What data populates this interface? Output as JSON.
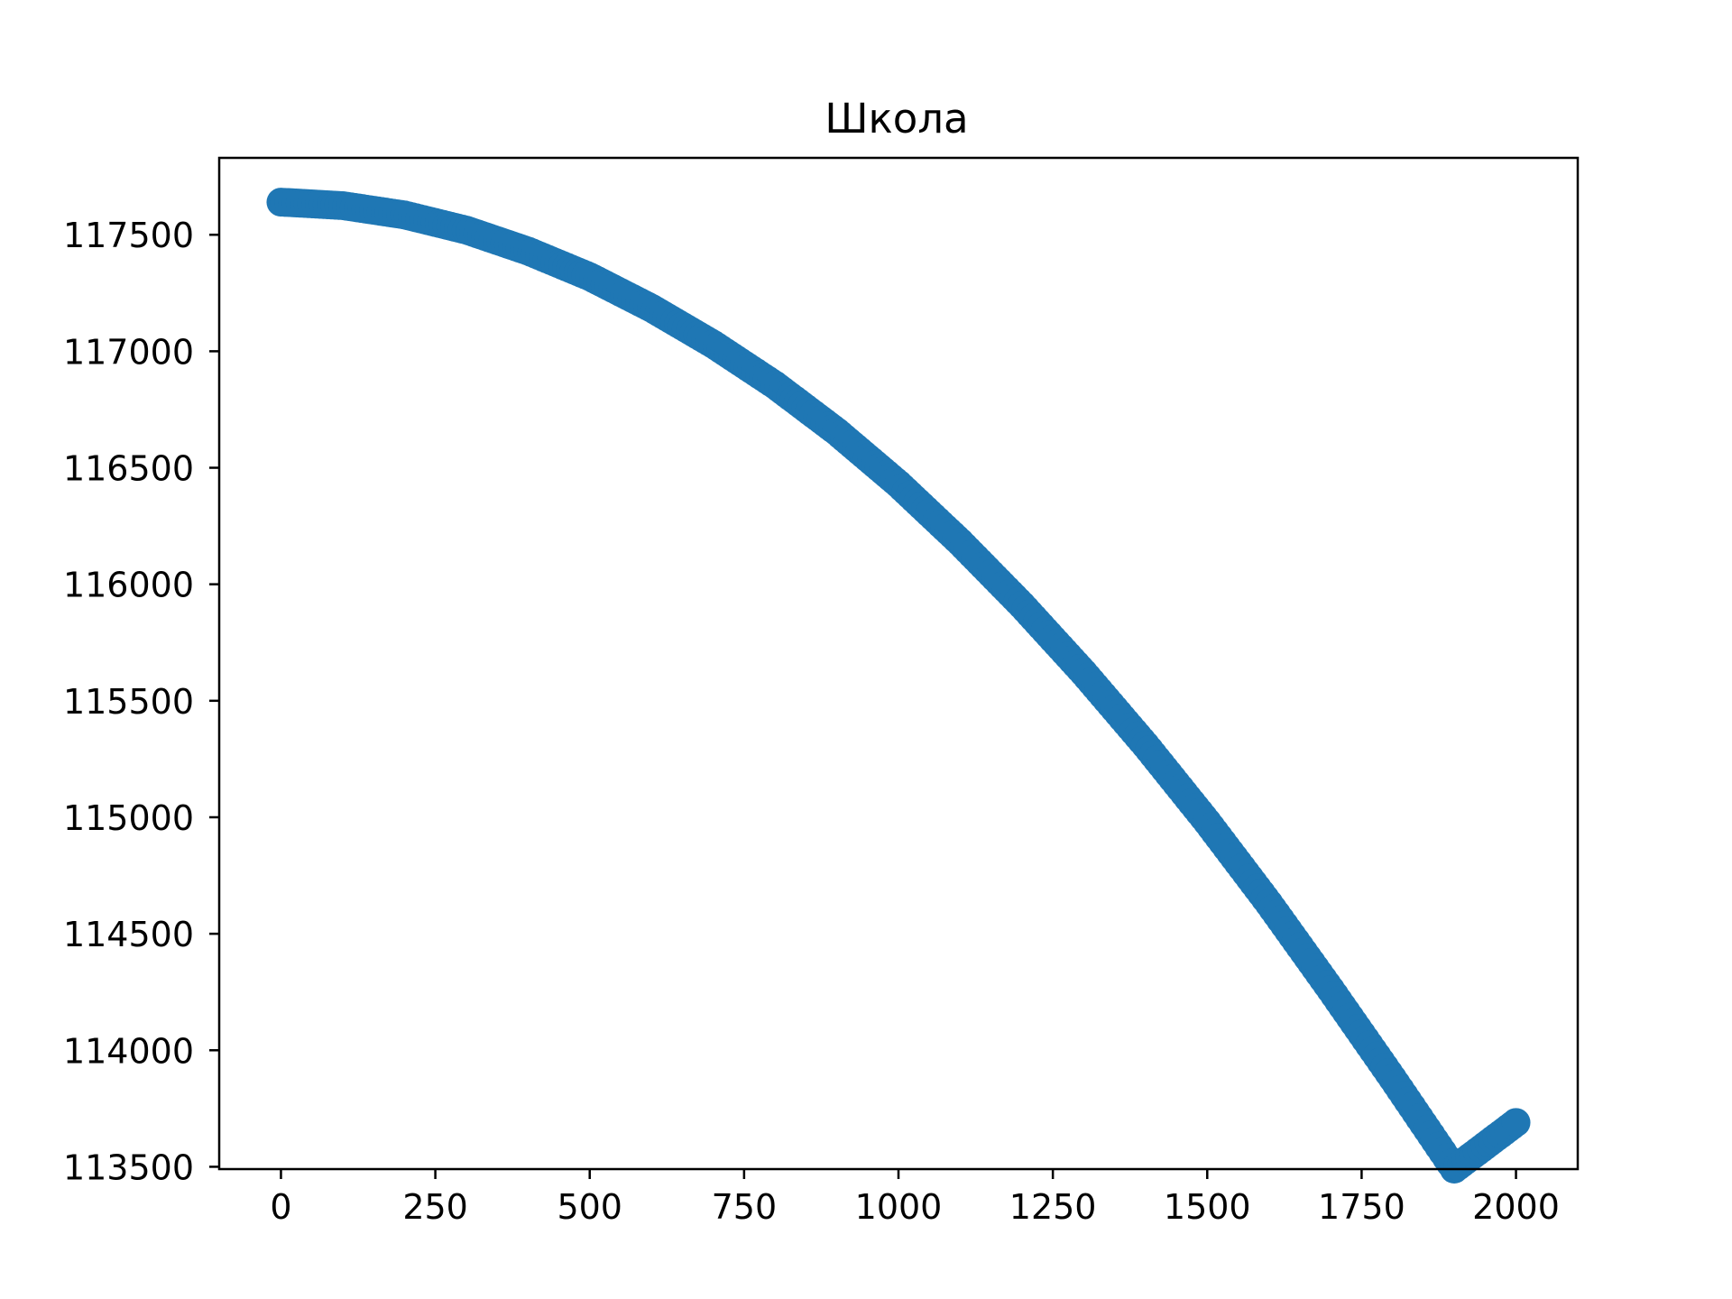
{
  "chart_data": {
    "type": "scatter",
    "title": "Школа",
    "xlabel": "",
    "ylabel": "",
    "xlim": [
      -100,
      2100
    ],
    "ylim": [
      113490,
      117830
    ],
    "x_ticks": [
      0,
      250,
      500,
      750,
      1000,
      1250,
      1500,
      1750,
      2000
    ],
    "y_ticks": [
      113500,
      114000,
      114500,
      115000,
      115500,
      116000,
      116500,
      117000,
      117500
    ],
    "grid": false,
    "legend": "none",
    "color": "#1f77b4",
    "series": [
      {
        "x": [
          0,
          100,
          200,
          300,
          400,
          500,
          600,
          700,
          800,
          900,
          1000,
          1100,
          1200,
          1300,
          1400,
          1500,
          1600,
          1700,
          1800,
          1900,
          2000
        ],
        "y": [
          117640,
          117625,
          117585,
          117520,
          117430,
          117320,
          117185,
          117030,
          116855,
          116655,
          116430,
          116180,
          115910,
          115620,
          115310,
          114980,
          114630,
          114260,
          113880,
          113490,
          113690
        ]
      }
    ]
  }
}
